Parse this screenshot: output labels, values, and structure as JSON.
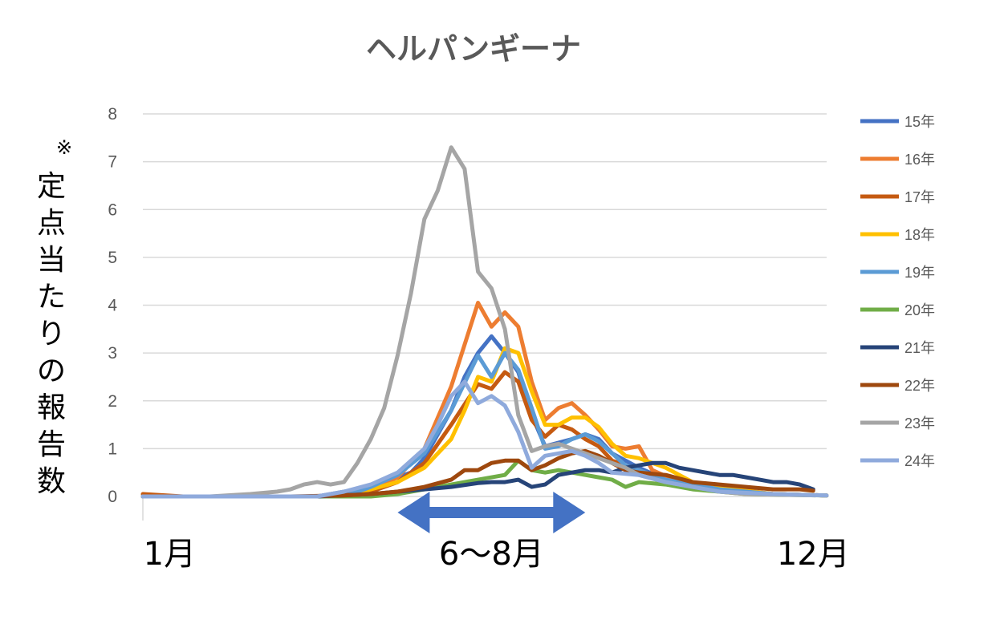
{
  "chart_data": {
    "type": "line",
    "title": "ヘルパンギーナ",
    "ylabel_note": "※",
    "ylabel": "定点当たりの報告数",
    "ylim": [
      0,
      8
    ],
    "yticks": [
      "0",
      "1",
      "2",
      "3",
      "4",
      "5",
      "6",
      "7",
      "8"
    ],
    "x_axis_labels": [
      "1月",
      "6〜8月",
      "12月"
    ],
    "x_label_weeks": [
      3,
      27,
      51
    ],
    "x_highlight_weeks": [
      20,
      34
    ],
    "highlight_color": "#4472C4",
    "weeks_per_year": 52,
    "grid": true,
    "legend_position": "right",
    "series": [
      {
        "name": "15年",
        "color": "#4472C4",
        "points": [
          [
            1,
            0
          ],
          [
            14,
            0
          ],
          [
            18,
            0.2
          ],
          [
            21,
            0.5
          ],
          [
            22,
            0.8
          ],
          [
            24,
            1.8
          ],
          [
            25,
            2.5
          ],
          [
            26,
            3.0
          ],
          [
            27,
            3.35
          ],
          [
            28,
            3.0
          ],
          [
            29,
            2.6
          ],
          [
            30,
            1.7
          ],
          [
            31,
            1.05
          ],
          [
            33,
            1.2
          ],
          [
            34,
            1.3
          ],
          [
            35,
            1.2
          ],
          [
            36,
            0.9
          ],
          [
            38,
            0.6
          ],
          [
            40,
            0.35
          ],
          [
            44,
            0.15
          ],
          [
            48,
            0.05
          ],
          [
            52,
            0.02
          ]
        ]
      },
      {
        "name": "16年",
        "color": "#ED7D31",
        "points": [
          [
            1,
            0
          ],
          [
            16,
            0
          ],
          [
            18,
            0.15
          ],
          [
            20,
            0.4
          ],
          [
            22,
            1.0
          ],
          [
            24,
            2.3
          ],
          [
            26,
            4.05
          ],
          [
            27,
            3.55
          ],
          [
            28,
            3.85
          ],
          [
            29,
            3.55
          ],
          [
            30,
            2.4
          ],
          [
            31,
            1.6
          ],
          [
            32,
            1.85
          ],
          [
            33,
            1.95
          ],
          [
            34,
            1.7
          ],
          [
            35,
            1.4
          ],
          [
            36,
            1.05
          ],
          [
            37,
            1.0
          ],
          [
            38,
            1.05
          ],
          [
            39,
            0.55
          ],
          [
            41,
            0.3
          ],
          [
            44,
            0.2
          ],
          [
            48,
            0.05
          ],
          [
            52,
            0.02
          ]
        ]
      },
      {
        "name": "17年",
        "color": "#C55A11",
        "points": [
          [
            1,
            0.05
          ],
          [
            4,
            0
          ],
          [
            14,
            0
          ],
          [
            18,
            0.1
          ],
          [
            20,
            0.3
          ],
          [
            22,
            0.7
          ],
          [
            24,
            1.5
          ],
          [
            26,
            2.35
          ],
          [
            27,
            2.25
          ],
          [
            28,
            2.6
          ],
          [
            29,
            2.4
          ],
          [
            30,
            1.6
          ],
          [
            31,
            1.25
          ],
          [
            32,
            1.5
          ],
          [
            33,
            1.4
          ],
          [
            34,
            1.2
          ],
          [
            35,
            1.05
          ],
          [
            36,
            0.75
          ],
          [
            38,
            0.55
          ],
          [
            40,
            0.3
          ],
          [
            44,
            0.15
          ],
          [
            48,
            0.05
          ],
          [
            52,
            0.02
          ]
        ]
      },
      {
        "name": "18年",
        "color": "#FFC000",
        "points": [
          [
            1,
            0
          ],
          [
            16,
            0
          ],
          [
            18,
            0.15
          ],
          [
            20,
            0.3
          ],
          [
            22,
            0.6
          ],
          [
            24,
            1.2
          ],
          [
            25,
            1.8
          ],
          [
            26,
            2.5
          ],
          [
            27,
            2.4
          ],
          [
            28,
            3.1
          ],
          [
            29,
            3.0
          ],
          [
            30,
            2.2
          ],
          [
            31,
            1.5
          ],
          [
            32,
            1.5
          ],
          [
            33,
            1.65
          ],
          [
            34,
            1.65
          ],
          [
            35,
            1.45
          ],
          [
            36,
            1.1
          ],
          [
            37,
            0.85
          ],
          [
            38,
            0.8
          ],
          [
            40,
            0.6
          ],
          [
            42,
            0.3
          ],
          [
            45,
            0.15
          ],
          [
            48,
            0.05
          ],
          [
            52,
            0.02
          ]
        ]
      },
      {
        "name": "19年",
        "color": "#5B9BD5",
        "points": [
          [
            1,
            0
          ],
          [
            16,
            0
          ],
          [
            18,
            0.2
          ],
          [
            20,
            0.45
          ],
          [
            22,
            0.9
          ],
          [
            24,
            1.8
          ],
          [
            26,
            2.95
          ],
          [
            27,
            2.5
          ],
          [
            28,
            3.0
          ],
          [
            29,
            2.65
          ],
          [
            30,
            1.85
          ],
          [
            31,
            1.0
          ],
          [
            32,
            1.05
          ],
          [
            33,
            1.2
          ],
          [
            34,
            1.3
          ],
          [
            35,
            1.15
          ],
          [
            36,
            0.9
          ],
          [
            37,
            0.65
          ],
          [
            38,
            0.55
          ],
          [
            40,
            0.35
          ],
          [
            44,
            0.15
          ],
          [
            48,
            0.05
          ],
          [
            52,
            0.02
          ]
        ]
      },
      {
        "name": "20年",
        "color": "#70AD47",
        "points": [
          [
            1,
            0
          ],
          [
            18,
            0
          ],
          [
            20,
            0.05
          ],
          [
            22,
            0.15
          ],
          [
            24,
            0.25
          ],
          [
            26,
            0.35
          ],
          [
            28,
            0.45
          ],
          [
            29,
            0.75
          ],
          [
            30,
            0.55
          ],
          [
            31,
            0.5
          ],
          [
            32,
            0.55
          ],
          [
            33,
            0.5
          ],
          [
            34,
            0.45
          ],
          [
            35,
            0.4
          ],
          [
            36,
            0.35
          ],
          [
            37,
            0.2
          ],
          [
            38,
            0.3
          ],
          [
            40,
            0.25
          ],
          [
            42,
            0.15
          ],
          [
            46,
            0.05
          ],
          [
            52,
            0.02
          ]
        ]
      },
      {
        "name": "21年",
        "color": "#264478",
        "points": [
          [
            1,
            0
          ],
          [
            14,
            0
          ],
          [
            18,
            0.05
          ],
          [
            20,
            0.1
          ],
          [
            22,
            0.15
          ],
          [
            24,
            0.2
          ],
          [
            26,
            0.28
          ],
          [
            27,
            0.3
          ],
          [
            28,
            0.3
          ],
          [
            29,
            0.35
          ],
          [
            30,
            0.2
          ],
          [
            31,
            0.25
          ],
          [
            32,
            0.45
          ],
          [
            33,
            0.5
          ],
          [
            34,
            0.55
          ],
          [
            35,
            0.55
          ],
          [
            36,
            0.5
          ],
          [
            37,
            0.6
          ],
          [
            38,
            0.65
          ],
          [
            39,
            0.7
          ],
          [
            40,
            0.7
          ],
          [
            41,
            0.6
          ],
          [
            42,
            0.55
          ],
          [
            43,
            0.5
          ],
          [
            44,
            0.45
          ],
          [
            45,
            0.45
          ],
          [
            46,
            0.4
          ],
          [
            47,
            0.35
          ],
          [
            48,
            0.3
          ],
          [
            49,
            0.3
          ],
          [
            50,
            0.25
          ],
          [
            51,
            0.15
          ]
        ]
      },
      {
        "name": "22年",
        "color": "#9E480E",
        "points": [
          [
            1,
            0
          ],
          [
            12,
            0
          ],
          [
            16,
            0.02
          ],
          [
            18,
            0.05
          ],
          [
            20,
            0.1
          ],
          [
            22,
            0.2
          ],
          [
            24,
            0.35
          ],
          [
            25,
            0.55
          ],
          [
            26,
            0.55
          ],
          [
            27,
            0.7
          ],
          [
            28,
            0.75
          ],
          [
            29,
            0.75
          ],
          [
            30,
            0.55
          ],
          [
            31,
            0.65
          ],
          [
            32,
            0.8
          ],
          [
            33,
            0.9
          ],
          [
            34,
            0.95
          ],
          [
            35,
            0.85
          ],
          [
            36,
            0.7
          ],
          [
            37,
            0.55
          ],
          [
            38,
            0.5
          ],
          [
            40,
            0.45
          ],
          [
            42,
            0.3
          ],
          [
            44,
            0.25
          ],
          [
            46,
            0.2
          ],
          [
            48,
            0.15
          ],
          [
            50,
            0.15
          ],
          [
            51,
            0.12
          ]
        ]
      },
      {
        "name": "23年",
        "color": "#A5A5A5",
        "points": [
          [
            1,
            0
          ],
          [
            6,
            0
          ],
          [
            9,
            0.05
          ],
          [
            11,
            0.1
          ],
          [
            12,
            0.15
          ],
          [
            13,
            0.25
          ],
          [
            14,
            0.3
          ],
          [
            15,
            0.25
          ],
          [
            16,
            0.3
          ],
          [
            17,
            0.7
          ],
          [
            18,
            1.2
          ],
          [
            19,
            1.85
          ],
          [
            20,
            2.95
          ],
          [
            21,
            4.25
          ],
          [
            22,
            5.8
          ],
          [
            23,
            6.4
          ],
          [
            24,
            7.3
          ],
          [
            25,
            6.85
          ],
          [
            26,
            4.7
          ],
          [
            27,
            4.35
          ],
          [
            28,
            3.5
          ],
          [
            29,
            1.7
          ],
          [
            30,
            0.95
          ],
          [
            31,
            1.05
          ],
          [
            32,
            1.1
          ],
          [
            33,
            1.0
          ],
          [
            34,
            0.9
          ],
          [
            35,
            0.8
          ],
          [
            36,
            0.7
          ],
          [
            37,
            0.6
          ],
          [
            38,
            0.45
          ],
          [
            40,
            0.3
          ],
          [
            42,
            0.2
          ],
          [
            44,
            0.1
          ],
          [
            46,
            0.05
          ],
          [
            52,
            0.02
          ]
        ]
      },
      {
        "name": "24年",
        "color": "#8FAADC",
        "points": [
          [
            1,
            0
          ],
          [
            14,
            0
          ],
          [
            16,
            0.1
          ],
          [
            18,
            0.25
          ],
          [
            20,
            0.5
          ],
          [
            22,
            1.0
          ],
          [
            23,
            1.5
          ],
          [
            24,
            2.1
          ],
          [
            25,
            2.4
          ],
          [
            26,
            1.95
          ],
          [
            27,
            2.1
          ],
          [
            28,
            1.9
          ],
          [
            29,
            1.35
          ],
          [
            30,
            0.6
          ],
          [
            31,
            0.85
          ],
          [
            32,
            0.9
          ],
          [
            33,
            0.95
          ],
          [
            34,
            0.85
          ],
          [
            35,
            0.7
          ],
          [
            36,
            0.5
          ],
          [
            38,
            0.45
          ],
          [
            40,
            0.3
          ],
          [
            42,
            0.2
          ],
          [
            44,
            0.1
          ],
          [
            48,
            0.05
          ],
          [
            52,
            0.02
          ]
        ]
      }
    ]
  }
}
